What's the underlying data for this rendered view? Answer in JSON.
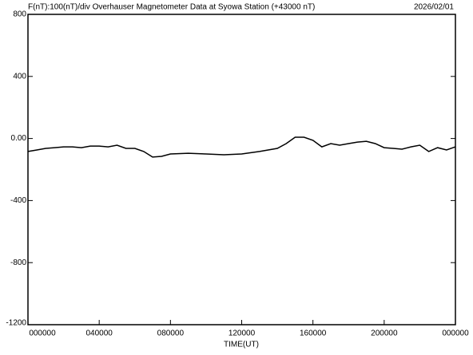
{
  "chart_data": {
    "type": "line",
    "title": "F(nT):100(nT)/div  Overhauser Magnetometer Data at Syowa Station (+43000 nT)",
    "date": "2026/02/01",
    "xlabel": "TIME(UT)",
    "color": "#000000",
    "x": [
      0,
      0.5,
      1,
      1.5,
      2,
      2.5,
      3,
      3.5,
      4,
      4.5,
      5,
      5.5,
      6,
      6.5,
      7,
      7.5,
      8,
      9,
      10,
      11,
      12,
      13,
      14,
      14.5,
      15,
      15.5,
      16,
      16.5,
      17,
      17.5,
      18,
      18.5,
      19,
      19.5,
      20,
      20.5,
      21,
      21.5,
      22,
      22.5,
      23,
      23.5,
      24
    ],
    "values": [
      -84,
      -74,
      -64,
      -59,
      -54,
      -54,
      -59,
      -49,
      -49,
      -54,
      -43,
      -64,
      -64,
      -84,
      -120,
      -115,
      -100,
      -95,
      -100,
      -105,
      -100,
      -84,
      -64,
      -33,
      8,
      8,
      -12,
      -54,
      -33,
      -43,
      -33,
      -23,
      -18,
      -33,
      -59,
      -64,
      -69,
      -54,
      -43,
      -84,
      -59,
      -74,
      -54
    ],
    "xlim": [
      0,
      24
    ],
    "xticks": [
      {
        "value": 0,
        "label": "000000"
      },
      {
        "value": 4,
        "label": "040000"
      },
      {
        "value": 8,
        "label": "080000"
      },
      {
        "value": 12,
        "label": "120000"
      },
      {
        "value": 16,
        "label": "160000"
      },
      {
        "value": 20,
        "label": "200000"
      },
      {
        "value": 24,
        "label": "000000"
      }
    ],
    "ylim": [
      -1200,
      800
    ],
    "yticks": [
      -1200,
      -800,
      -400,
      {
        "value": 0,
        "label": "0.00"
      },
      400,
      800
    ]
  }
}
